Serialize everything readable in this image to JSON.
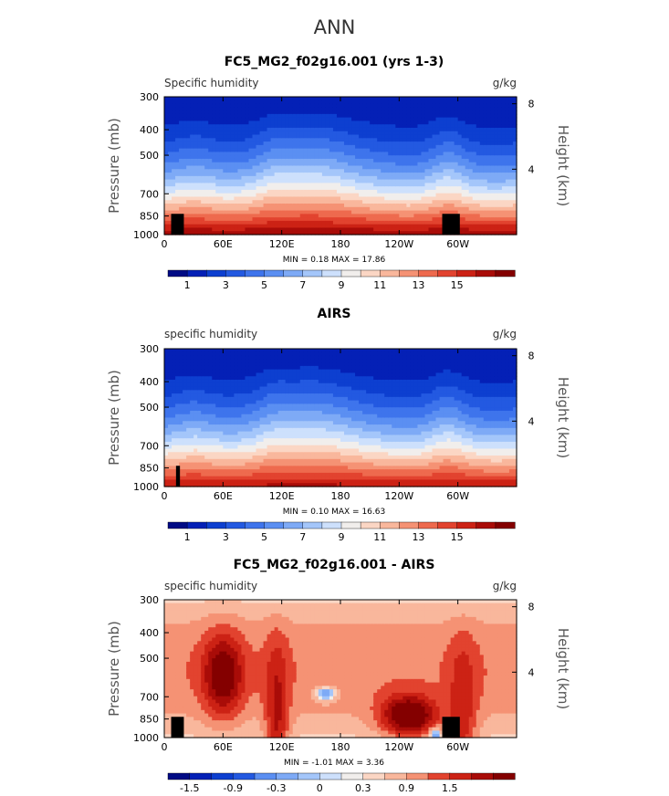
{
  "page_title": "ANN",
  "chart_data": [
    {
      "type": "heatmap",
      "title": "FC5_MG2_f02g16.001 (yrs 1-3)",
      "variable_label": "Specific humidity",
      "units": "g/kg",
      "ylabel": "Pressure (mb)",
      "ylabel_right": "Height (km)",
      "x_ticks": [
        "0",
        "60E",
        "120E",
        "180",
        "120W",
        "60W"
      ],
      "y_ticks": [
        "300",
        "400",
        "500",
        "700",
        "850",
        "1000"
      ],
      "y_right_ticks": [
        "8",
        "4"
      ],
      "ylim": [
        1000,
        300
      ],
      "y_scale": "log",
      "stats": "MIN =    0.18   MAX =   17.86",
      "min": 0.18,
      "max": 17.86,
      "colorbar_labels": [
        "1",
        "3",
        "5",
        "7",
        "9",
        "11",
        "13",
        "15"
      ],
      "colorbar_levels": [
        0,
        1,
        2,
        3,
        4,
        5,
        6,
        7,
        8,
        9,
        10,
        11,
        12,
        13,
        14,
        15,
        16
      ]
    },
    {
      "type": "heatmap",
      "title": "AIRS",
      "variable_label": "specific humidity",
      "units": "g/kg",
      "ylabel": "Pressure (mb)",
      "ylabel_right": "Height (km)",
      "x_ticks": [
        "0",
        "60E",
        "120E",
        "180",
        "120W",
        "60W"
      ],
      "y_ticks": [
        "300",
        "400",
        "500",
        "700",
        "850",
        "1000"
      ],
      "y_right_ticks": [
        "8",
        "4"
      ],
      "ylim": [
        1000,
        300
      ],
      "y_scale": "log",
      "stats": "MIN =    0.10   MAX =   16.63",
      "min": 0.1,
      "max": 16.63,
      "colorbar_labels": [
        "1",
        "3",
        "5",
        "7",
        "9",
        "11",
        "13",
        "15"
      ],
      "colorbar_levels": [
        0,
        1,
        2,
        3,
        4,
        5,
        6,
        7,
        8,
        9,
        10,
        11,
        12,
        13,
        14,
        15,
        16
      ]
    },
    {
      "type": "heatmap",
      "title": "FC5_MG2_f02g16.001 - AIRS",
      "variable_label": "specific humidity",
      "units": "g/kg",
      "ylabel": "Pressure (mb)",
      "ylabel_right": "Height (km)",
      "x_ticks": [
        "0",
        "60E",
        "120E",
        "180",
        "120W",
        "60W"
      ],
      "y_ticks": [
        "300",
        "400",
        "500",
        "700",
        "850",
        "1000"
      ],
      "y_right_ticks": [
        "8",
        "4"
      ],
      "ylim": [
        1000,
        300
      ],
      "y_scale": "log",
      "stats": "MIN =   -1.01   MAX =    3.36",
      "min": -1.01,
      "max": 3.36,
      "colorbar_labels": [
        "-1.5",
        "-0.9",
        "-0.3",
        "0",
        "0.3",
        "0.9",
        "1.5"
      ],
      "colorbar_levels": [
        -1.8,
        -1.5,
        -1.2,
        -0.9,
        -0.6,
        -0.3,
        -0.1,
        0,
        0.1,
        0.3,
        0.6,
        0.9,
        1.2,
        1.5,
        1.8
      ]
    }
  ],
  "colors": {
    "palette": [
      "#000b85",
      "#0420b6",
      "#0d3fd0",
      "#2359e1",
      "#3e74ec",
      "#5b8ff2",
      "#7eaaf6",
      "#a4c6fa",
      "#cde0fc",
      "#f1eeec",
      "#fbd6c4",
      "#f9b79c",
      "#f59274",
      "#ee6a4e",
      "#e2432f",
      "#cc2215",
      "#a90c08",
      "#840000"
    ],
    "mask": "#000000"
  }
}
